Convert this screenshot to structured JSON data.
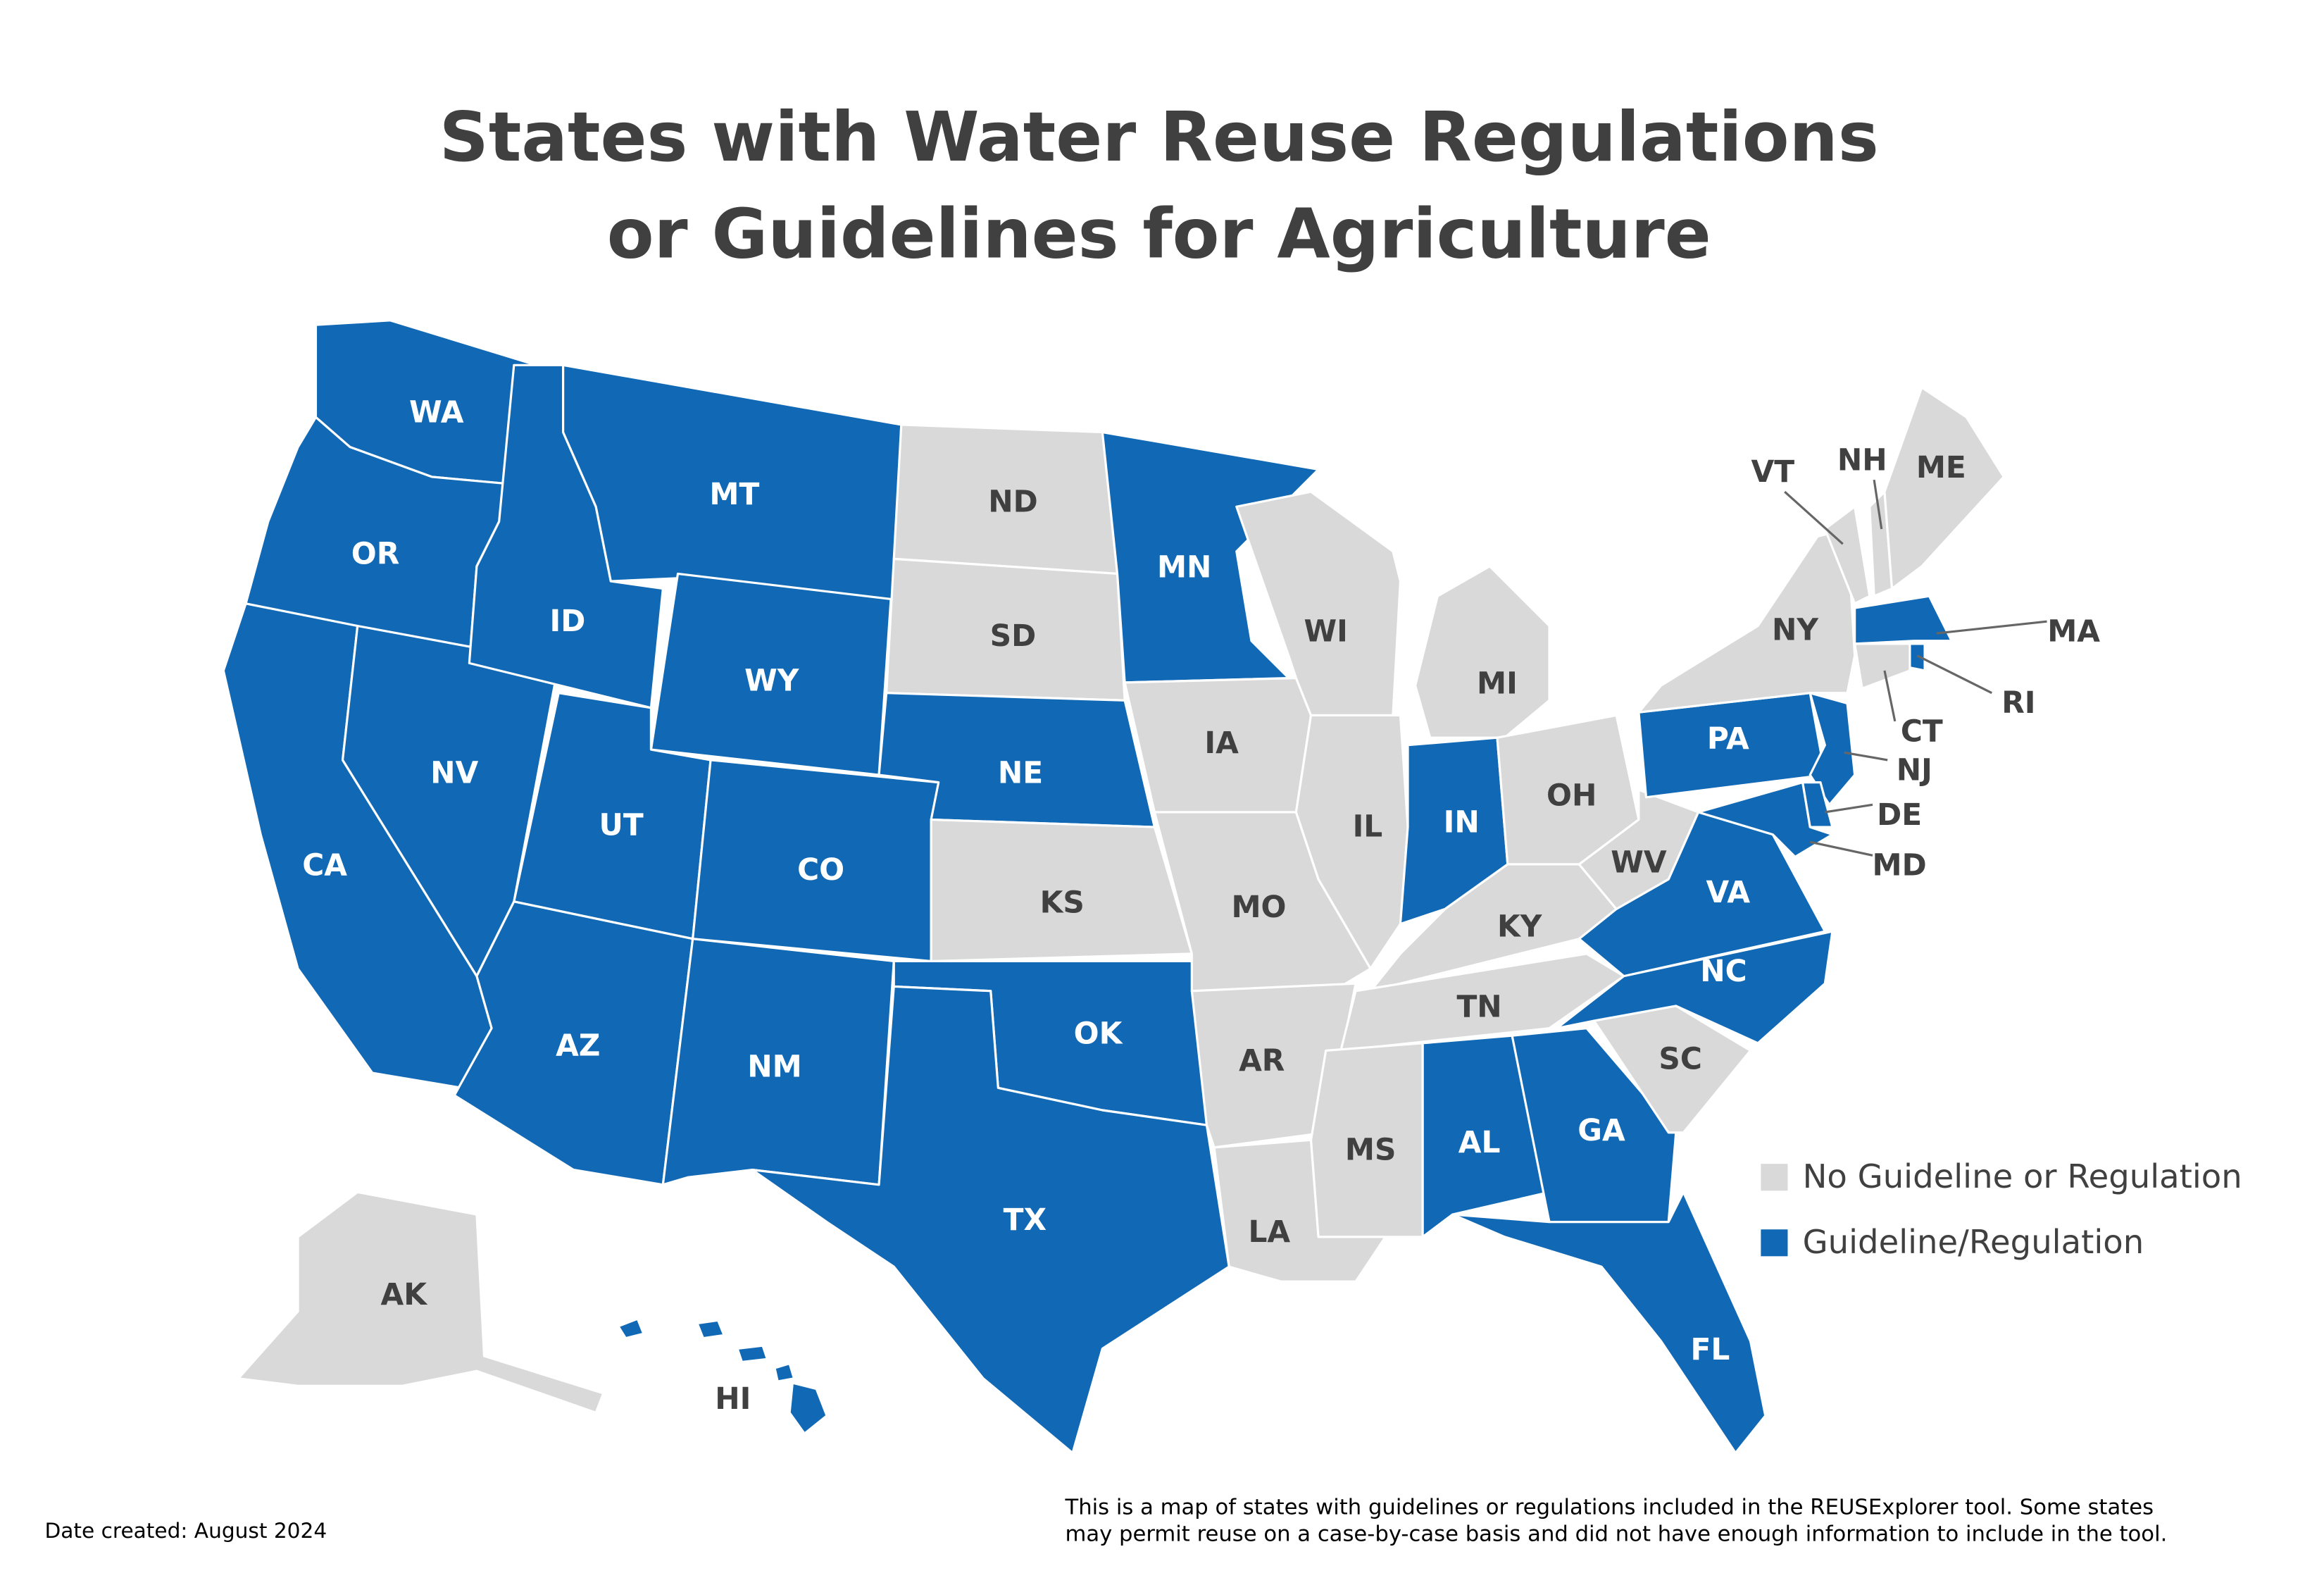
{
  "title": [
    "States with Water Reuse Regulations",
    "or Guidelines for Agriculture"
  ],
  "legend": {
    "items": [
      {
        "label": "No Guideline or Regulation",
        "color": "#d9d9d9"
      },
      {
        "label": "Guideline/Regulation",
        "color": "#1169b5"
      }
    ]
  },
  "states": [
    {
      "label": "WA",
      "regulated": true
    },
    {
      "label": "OR",
      "regulated": true
    },
    {
      "label": "CA",
      "regulated": true
    },
    {
      "label": "NV",
      "regulated": true
    },
    {
      "label": "ID",
      "regulated": true
    },
    {
      "label": "MT",
      "regulated": true
    },
    {
      "label": "WY",
      "regulated": true
    },
    {
      "label": "UT",
      "regulated": true
    },
    {
      "label": "CO",
      "regulated": true
    },
    {
      "label": "AZ",
      "regulated": true
    },
    {
      "label": "NM",
      "regulated": true
    },
    {
      "label": "ND",
      "regulated": false
    },
    {
      "label": "SD",
      "regulated": false
    },
    {
      "label": "NE",
      "regulated": true
    },
    {
      "label": "KS",
      "regulated": false
    },
    {
      "label": "OK",
      "regulated": true
    },
    {
      "label": "TX",
      "regulated": true
    },
    {
      "label": "MN",
      "regulated": true
    },
    {
      "label": "IA",
      "regulated": false
    },
    {
      "label": "MO",
      "regulated": false
    },
    {
      "label": "AR",
      "regulated": false
    },
    {
      "label": "LA",
      "regulated": false
    },
    {
      "label": "WI",
      "regulated": false
    },
    {
      "label": "IL",
      "regulated": false
    },
    {
      "label": "MI",
      "regulated": false
    },
    {
      "label": "IN",
      "regulated": true
    },
    {
      "label": "OH",
      "regulated": false
    },
    {
      "label": "KY",
      "regulated": false
    },
    {
      "label": "TN",
      "regulated": false
    },
    {
      "label": "MS",
      "regulated": false
    },
    {
      "label": "AL",
      "regulated": true
    },
    {
      "label": "GA",
      "regulated": true
    },
    {
      "label": "FL",
      "regulated": true
    },
    {
      "label": "SC",
      "regulated": false
    },
    {
      "label": "NC",
      "regulated": true
    },
    {
      "label": "VA",
      "regulated": true
    },
    {
      "label": "WV",
      "regulated": false
    },
    {
      "label": "PA",
      "regulated": true
    },
    {
      "label": "NY",
      "regulated": false
    },
    {
      "label": "VT",
      "regulated": false
    },
    {
      "label": "NH",
      "regulated": false
    },
    {
      "label": "ME",
      "regulated": false
    },
    {
      "label": "MA",
      "regulated": true
    },
    {
      "label": "RI",
      "regulated": true
    },
    {
      "label": "CT",
      "regulated": false
    },
    {
      "label": "NJ",
      "regulated": true
    },
    {
      "label": "DE",
      "regulated": true
    },
    {
      "label": "MD",
      "regulated": true
    },
    {
      "label": "AK",
      "regulated": false
    },
    {
      "label": "HI",
      "regulated": true
    }
  ],
  "footer": {
    "date": "Date created: August 2024",
    "note": [
      "This is a map of states with guidelines or regulations included in the REUSExplorer tool. Some states",
      "may permit reuse on a case-by-case basis and did not have enough information to include in the tool."
    ]
  }
}
